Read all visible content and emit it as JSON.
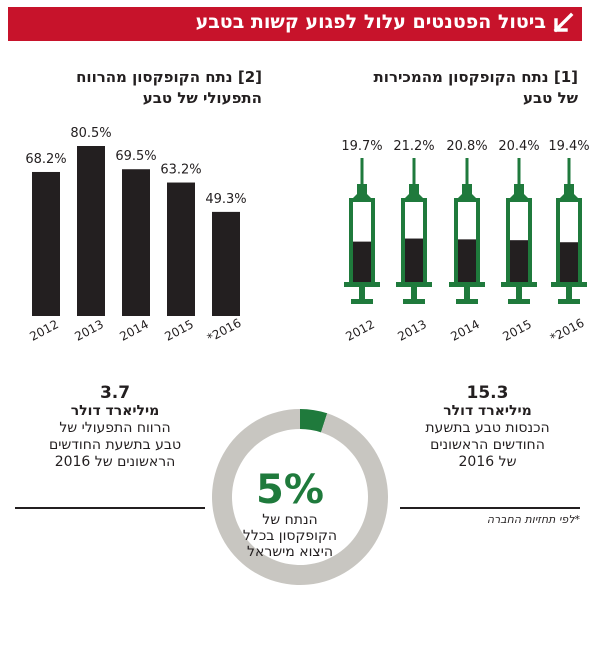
{
  "header": {
    "title": "ביטול הפטנטים עלול לפגוע קשות בטבע"
  },
  "panel_left": {
    "number": "[2]",
    "title_line1": "נתח הקופקסון מהרווח",
    "title_line2": "התפעולי של טבע"
  },
  "panel_right": {
    "number": "[1]",
    "title_line1": "נתח הקופקסון מהמכירות",
    "title_line2": "של טבע"
  },
  "chart_data": [
    {
      "type": "bar",
      "title": "נתח הקופקסון מהרווח התפעולי של טבע",
      "categories": [
        "2012",
        "2013",
        "2014",
        "2015",
        "*2016"
      ],
      "values": [
        68.2,
        80.5,
        69.5,
        63.2,
        49.3
      ],
      "labels": [
        "68.2%",
        "80.5%",
        "69.5%",
        "63.2%",
        "49.3%"
      ],
      "unit": "%",
      "ylim": [
        0,
        100
      ],
      "colors": {
        "bar": "#231f20"
      }
    },
    {
      "type": "bar",
      "title": "נתח הקופקסון מהמכירות של טבע",
      "categories": [
        "2012",
        "2013",
        "2014",
        "2015",
        "*2016"
      ],
      "values": [
        19.7,
        21.2,
        20.8,
        20.4,
        19.4
      ],
      "labels": [
        "19.7%",
        "21.2%",
        "20.8%",
        "20.4%",
        "19.4%"
      ],
      "unit": "%",
      "ylim": [
        0,
        40
      ],
      "style": "syringe",
      "colors": {
        "outline": "#1f7a3c",
        "fill": "#231f20"
      }
    },
    {
      "type": "pie",
      "style": "donut",
      "values": [
        5,
        95
      ],
      "center_value": "5%",
      "center_caption": [
        "הנתח של",
        "הקופקסון בכלל",
        "היצוא מישראל"
      ],
      "colors": [
        "#1f7a3c",
        "#c8c6c1"
      ]
    }
  ],
  "side_left": {
    "value": "3.7",
    "unit": "מיליארד דולר",
    "text": [
      "הרווח התפעולי של",
      "טבע בתשעת החודשים",
      "הראשונים של 2016"
    ]
  },
  "side_right": {
    "value": "15.3",
    "unit": "מיליארד דולר",
    "text": [
      "הכנסות טבע בתשעת",
      "החודשים הראשונים",
      "של 2016"
    ]
  },
  "footnote": "*לפי תחזיות החברה",
  "colors": {
    "banner": "#c7132b",
    "green": "#1f7a3c",
    "dark": "#231f20",
    "donut_gray": "#c8c6c1"
  }
}
